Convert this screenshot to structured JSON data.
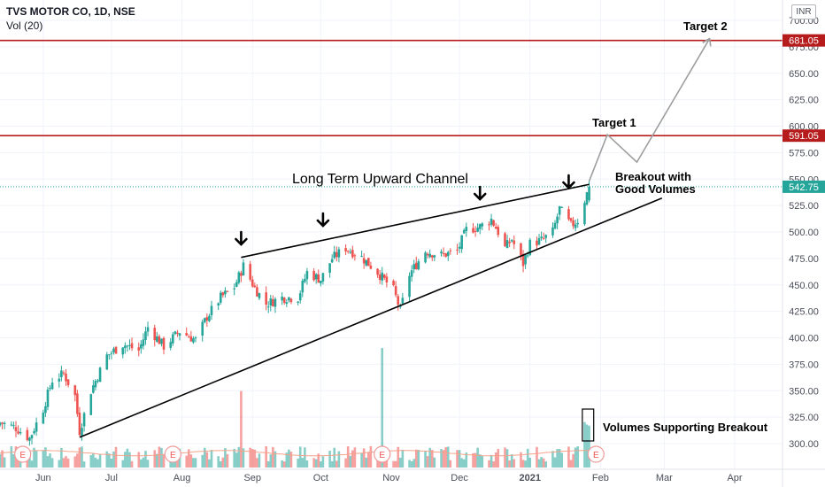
{
  "header": {
    "symbol_line": "TVS MOTOR CO, 1D, NSE",
    "volume_line": "Vol (20)",
    "currency": "INR"
  },
  "annotations": {
    "channel": "Long Term Upward Channel",
    "target1": "Target 1",
    "target2": "Target 2",
    "breakout_line1": "Breakout with",
    "breakout_line2": "Good Volumes",
    "volume_note": "Volumes Supporting Breakout"
  },
  "colors": {
    "up": "#26a69a",
    "down": "#ef5350",
    "target_line": "#b71c1c",
    "price_badge": "#26a69a",
    "projection": "#9e9e9e",
    "trendline": "#000000",
    "vol_ma": "#f4a18a"
  },
  "chart_data": {
    "type": "candlestick",
    "y_ticks": [
      "700.00",
      "675.00",
      "650.00",
      "625.00",
      "600.00",
      "575.00",
      "550.00",
      "525.00",
      "500.00",
      "475.00",
      "450.00",
      "425.00",
      "400.00",
      "375.00",
      "350.00",
      "325.00",
      "300.00"
    ],
    "ylim": [
      285,
      710
    ],
    "x_tick_labels": [
      "Jun",
      "Jul",
      "Aug",
      "Sep",
      "Oct",
      "Nov",
      "Dec",
      "2021",
      "Feb",
      "Mar",
      "Apr"
    ],
    "x_tick_dates": [
      "2020-06-01",
      "2020-07-01",
      "2020-08-01",
      "2020-09-01",
      "2020-10-01",
      "2020-11-01",
      "2020-12-01",
      "2021-01-01",
      "2021-02-01",
      "2021-03-01",
      "2021-04-01"
    ],
    "x_range": [
      "2020-05-13",
      "2021-04-22"
    ],
    "horizontal_levels": [
      {
        "label": "681.05",
        "value": 681.05
      },
      {
        "label": "591.05",
        "value": 591.05
      }
    ],
    "last_price": {
      "label": "542.75",
      "value": 542.75
    },
    "earnings_markers": [
      "2020-05-23",
      "2020-07-28",
      "2020-10-28",
      "2021-01-30"
    ],
    "close_anchors": [
      {
        "date": "2020-05-13",
        "value": 320
      },
      {
        "date": "2020-05-20",
        "value": 315
      },
      {
        "date": "2020-05-26",
        "value": 305
      },
      {
        "date": "2020-06-01",
        "value": 333
      },
      {
        "date": "2020-06-05",
        "value": 360
      },
      {
        "date": "2020-06-10",
        "value": 366
      },
      {
        "date": "2020-06-15",
        "value": 345
      },
      {
        "date": "2020-06-17",
        "value": 312
      },
      {
        "date": "2020-06-22",
        "value": 350
      },
      {
        "date": "2020-06-29",
        "value": 383
      },
      {
        "date": "2020-07-06",
        "value": 394
      },
      {
        "date": "2020-07-13",
        "value": 388
      },
      {
        "date": "2020-07-17",
        "value": 410
      },
      {
        "date": "2020-07-24",
        "value": 392
      },
      {
        "date": "2020-07-31",
        "value": 406
      },
      {
        "date": "2020-08-07",
        "value": 398
      },
      {
        "date": "2020-08-12",
        "value": 420
      },
      {
        "date": "2020-08-18",
        "value": 438
      },
      {
        "date": "2020-08-24",
        "value": 448
      },
      {
        "date": "2020-08-28",
        "value": 468
      },
      {
        "date": "2020-09-02",
        "value": 447
      },
      {
        "date": "2020-09-07",
        "value": 432
      },
      {
        "date": "2020-09-14",
        "value": 438
      },
      {
        "date": "2020-09-21",
        "value": 438
      },
      {
        "date": "2020-09-25",
        "value": 462
      },
      {
        "date": "2020-10-01",
        "value": 455
      },
      {
        "date": "2020-10-06",
        "value": 475
      },
      {
        "date": "2020-10-12",
        "value": 485
      },
      {
        "date": "2020-10-19",
        "value": 476
      },
      {
        "date": "2020-10-26",
        "value": 462
      },
      {
        "date": "2020-11-02",
        "value": 445
      },
      {
        "date": "2020-11-05",
        "value": 426
      },
      {
        "date": "2020-11-09",
        "value": 460
      },
      {
        "date": "2020-11-16",
        "value": 482
      },
      {
        "date": "2020-11-23",
        "value": 478
      },
      {
        "date": "2020-11-30",
        "value": 482
      },
      {
        "date": "2020-12-04",
        "value": 502
      },
      {
        "date": "2020-12-10",
        "value": 505
      },
      {
        "date": "2020-12-15",
        "value": 512
      },
      {
        "date": "2020-12-18",
        "value": 500
      },
      {
        "date": "2020-12-21",
        "value": 485
      },
      {
        "date": "2020-12-24",
        "value": 493
      },
      {
        "date": "2020-12-29",
        "value": 470
      },
      {
        "date": "2021-01-01",
        "value": 489
      },
      {
        "date": "2021-01-06",
        "value": 492
      },
      {
        "date": "2021-01-11",
        "value": 500
      },
      {
        "date": "2021-01-14",
        "value": 522
      },
      {
        "date": "2021-01-19",
        "value": 506
      },
      {
        "date": "2021-01-22",
        "value": 511
      },
      {
        "date": "2021-01-27",
        "value": 542.75
      }
    ],
    "volume_spikes": [
      {
        "date": "2020-08-27",
        "ratio": 0.64
      },
      {
        "date": "2020-10-28",
        "ratio": 1.0
      },
      {
        "date": "2021-01-25",
        "ratio": 0.38
      },
      {
        "date": "2021-01-26",
        "ratio": 0.36
      },
      {
        "date": "2021-01-27",
        "ratio": 0.35
      }
    ],
    "channel_upper": [
      {
        "date": "2020-08-27",
        "value": 476
      },
      {
        "date": "2021-01-27",
        "value": 545
      }
    ],
    "channel_lower": [
      {
        "date": "2020-06-17",
        "value": 306
      },
      {
        "date": "2021-02-28",
        "value": 532
      }
    ],
    "projection_path": [
      {
        "date": "2021-01-27",
        "value": 548
      },
      {
        "date": "2021-02-04",
        "value": 592
      },
      {
        "date": "2021-02-17",
        "value": 566
      },
      {
        "date": "2021-03-21",
        "value": 683
      }
    ],
    "arrow_marks": [
      "2020-08-27",
      "2020-10-02",
      "2020-12-10",
      "2021-01-18"
    ]
  }
}
